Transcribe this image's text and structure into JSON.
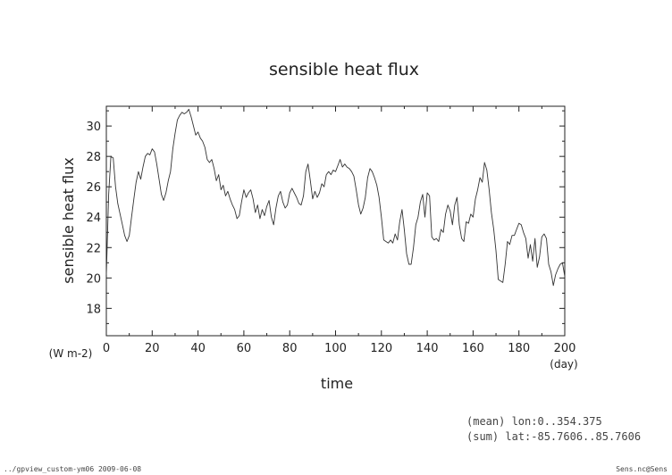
{
  "chart_data": {
    "type": "line",
    "title": "sensible heat flux",
    "xlabel": "time",
    "ylabel": "sensible heat flux",
    "x_unit": "(day)",
    "y_unit": "(W m-2)",
    "xlim": [
      0,
      200
    ],
    "ylim": [
      16.2,
      31.3
    ],
    "xticks": [
      0,
      20,
      40,
      60,
      80,
      100,
      120,
      140,
      160,
      180,
      200
    ],
    "yticks": [
      18,
      20,
      22,
      24,
      26,
      28,
      30
    ],
    "grid": false,
    "series": [
      {
        "values": [
          [
            0,
            20.2
          ],
          [
            1,
            25.5
          ],
          [
            2,
            28.0
          ],
          [
            3,
            27.9
          ],
          [
            4,
            26.0
          ],
          [
            5,
            24.9
          ],
          [
            6,
            24.2
          ],
          [
            7,
            23.5
          ],
          [
            8,
            22.8
          ],
          [
            9,
            22.4
          ],
          [
            10,
            22.8
          ],
          [
            11,
            24.0
          ],
          [
            12,
            25.2
          ],
          [
            13,
            26.3
          ],
          [
            14,
            27.0
          ],
          [
            15,
            26.5
          ],
          [
            16,
            27.3
          ],
          [
            17,
            28.0
          ],
          [
            18,
            28.2
          ],
          [
            19,
            28.1
          ],
          [
            20,
            28.5
          ],
          [
            21,
            28.3
          ],
          [
            22,
            27.5
          ],
          [
            23,
            26.5
          ],
          [
            24,
            25.5
          ],
          [
            25,
            25.1
          ],
          [
            26,
            25.6
          ],
          [
            27,
            26.4
          ],
          [
            28,
            27.0
          ],
          [
            29,
            28.5
          ],
          [
            30,
            29.5
          ],
          [
            31,
            30.4
          ],
          [
            32,
            30.7
          ],
          [
            33,
            30.9
          ],
          [
            34,
            30.8
          ],
          [
            35,
            30.9
          ],
          [
            36,
            31.1
          ],
          [
            37,
            30.6
          ],
          [
            38,
            30.0
          ],
          [
            39,
            29.4
          ],
          [
            40,
            29.6
          ],
          [
            41,
            29.2
          ],
          [
            42,
            29.0
          ],
          [
            43,
            28.6
          ],
          [
            44,
            27.8
          ],
          [
            45,
            27.6
          ],
          [
            46,
            27.8
          ],
          [
            47,
            27.2
          ],
          [
            48,
            26.4
          ],
          [
            49,
            26.8
          ],
          [
            50,
            25.8
          ],
          [
            51,
            26.1
          ],
          [
            52,
            25.4
          ],
          [
            53,
            25.7
          ],
          [
            54,
            25.2
          ],
          [
            55,
            24.8
          ],
          [
            56,
            24.5
          ],
          [
            57,
            23.9
          ],
          [
            58,
            24.1
          ],
          [
            59,
            25.0
          ],
          [
            60,
            25.8
          ],
          [
            61,
            25.3
          ],
          [
            62,
            25.6
          ],
          [
            63,
            25.8
          ],
          [
            64,
            25.2
          ],
          [
            65,
            24.3
          ],
          [
            66,
            24.8
          ],
          [
            67,
            23.9
          ],
          [
            68,
            24.5
          ],
          [
            69,
            24.1
          ],
          [
            70,
            24.7
          ],
          [
            71,
            25.1
          ],
          [
            72,
            24.0
          ],
          [
            73,
            23.5
          ],
          [
            74,
            24.6
          ],
          [
            75,
            25.4
          ],
          [
            76,
            25.7
          ],
          [
            77,
            25.0
          ],
          [
            78,
            24.6
          ],
          [
            79,
            24.8
          ],
          [
            80,
            25.6
          ],
          [
            81,
            25.9
          ],
          [
            82,
            25.6
          ],
          [
            83,
            25.3
          ],
          [
            84,
            24.9
          ],
          [
            85,
            24.8
          ],
          [
            86,
            25.4
          ],
          [
            87,
            27.0
          ],
          [
            88,
            27.5
          ],
          [
            89,
            26.4
          ],
          [
            90,
            25.2
          ],
          [
            91,
            25.7
          ],
          [
            92,
            25.3
          ],
          [
            93,
            25.6
          ],
          [
            94,
            26.2
          ],
          [
            95,
            26.0
          ],
          [
            96,
            26.8
          ],
          [
            97,
            27.0
          ],
          [
            98,
            26.8
          ],
          [
            99,
            27.1
          ],
          [
            100,
            27.0
          ],
          [
            101,
            27.4
          ],
          [
            102,
            27.8
          ],
          [
            103,
            27.3
          ],
          [
            104,
            27.5
          ],
          [
            105,
            27.3
          ],
          [
            106,
            27.2
          ],
          [
            107,
            27.0
          ],
          [
            108,
            26.7
          ],
          [
            109,
            25.8
          ],
          [
            110,
            24.8
          ],
          [
            111,
            24.2
          ],
          [
            112,
            24.6
          ],
          [
            113,
            25.3
          ],
          [
            114,
            26.6
          ],
          [
            115,
            27.2
          ],
          [
            116,
            27.0
          ],
          [
            117,
            26.6
          ],
          [
            118,
            26.1
          ],
          [
            119,
            25.3
          ],
          [
            120,
            24.0
          ],
          [
            121,
            22.5
          ],
          [
            122,
            22.4
          ],
          [
            123,
            22.3
          ],
          [
            124,
            22.5
          ],
          [
            125,
            22.3
          ],
          [
            126,
            22.9
          ],
          [
            127,
            22.5
          ],
          [
            128,
            23.7
          ],
          [
            129,
            24.5
          ],
          [
            130,
            23.2
          ],
          [
            131,
            21.6
          ],
          [
            132,
            20.9
          ],
          [
            133,
            20.9
          ],
          [
            134,
            22.0
          ],
          [
            135,
            23.5
          ],
          [
            136,
            24.0
          ],
          [
            137,
            25.0
          ],
          [
            138,
            25.5
          ],
          [
            139,
            24.0
          ],
          [
            140,
            25.6
          ],
          [
            141,
            25.4
          ],
          [
            142,
            22.7
          ],
          [
            143,
            22.5
          ],
          [
            144,
            22.6
          ],
          [
            145,
            22.4
          ],
          [
            146,
            23.2
          ],
          [
            147,
            23.0
          ],
          [
            148,
            24.2
          ],
          [
            149,
            24.8
          ],
          [
            150,
            24.4
          ],
          [
            151,
            23.5
          ],
          [
            152,
            24.8
          ],
          [
            153,
            25.3
          ],
          [
            154,
            23.5
          ],
          [
            155,
            22.6
          ],
          [
            156,
            22.4
          ],
          [
            157,
            23.7
          ],
          [
            158,
            23.6
          ],
          [
            159,
            24.2
          ],
          [
            160,
            24.0
          ],
          [
            161,
            25.2
          ],
          [
            162,
            25.8
          ],
          [
            163,
            26.6
          ],
          [
            164,
            26.3
          ],
          [
            165,
            27.6
          ],
          [
            166,
            27.1
          ],
          [
            167,
            25.8
          ],
          [
            168,
            24.3
          ],
          [
            169,
            23.2
          ],
          [
            170,
            21.8
          ],
          [
            171,
            19.9
          ],
          [
            172,
            19.8
          ],
          [
            173,
            19.7
          ],
          [
            174,
            20.9
          ],
          [
            175,
            22.4
          ],
          [
            176,
            22.2
          ],
          [
            177,
            22.8
          ],
          [
            178,
            22.8
          ],
          [
            179,
            23.2
          ],
          [
            180,
            23.6
          ],
          [
            181,
            23.5
          ],
          [
            182,
            23.0
          ],
          [
            183,
            22.6
          ],
          [
            184,
            21.3
          ],
          [
            185,
            22.2
          ],
          [
            186,
            21.1
          ],
          [
            187,
            22.6
          ],
          [
            188,
            20.7
          ],
          [
            189,
            21.4
          ],
          [
            190,
            22.7
          ],
          [
            191,
            22.9
          ],
          [
            192,
            22.6
          ],
          [
            193,
            20.9
          ],
          [
            194,
            20.4
          ],
          [
            195,
            19.5
          ],
          [
            196,
            20.2
          ],
          [
            197,
            20.6
          ],
          [
            198,
            20.9
          ],
          [
            199,
            21.0
          ],
          [
            200,
            20.1
          ]
        ]
      }
    ],
    "annotations": {
      "mean": "(mean) lon:0..354.375",
      "sum": "(sum) lat:-85.7606..85.7606"
    }
  },
  "footer": {
    "left": "../gpview_custom-ym06  2009-06-08",
    "right": "Sens.nc@Sens"
  },
  "colors": {
    "line": "#333333",
    "axis": "#222222",
    "background": "#ffffff"
  }
}
